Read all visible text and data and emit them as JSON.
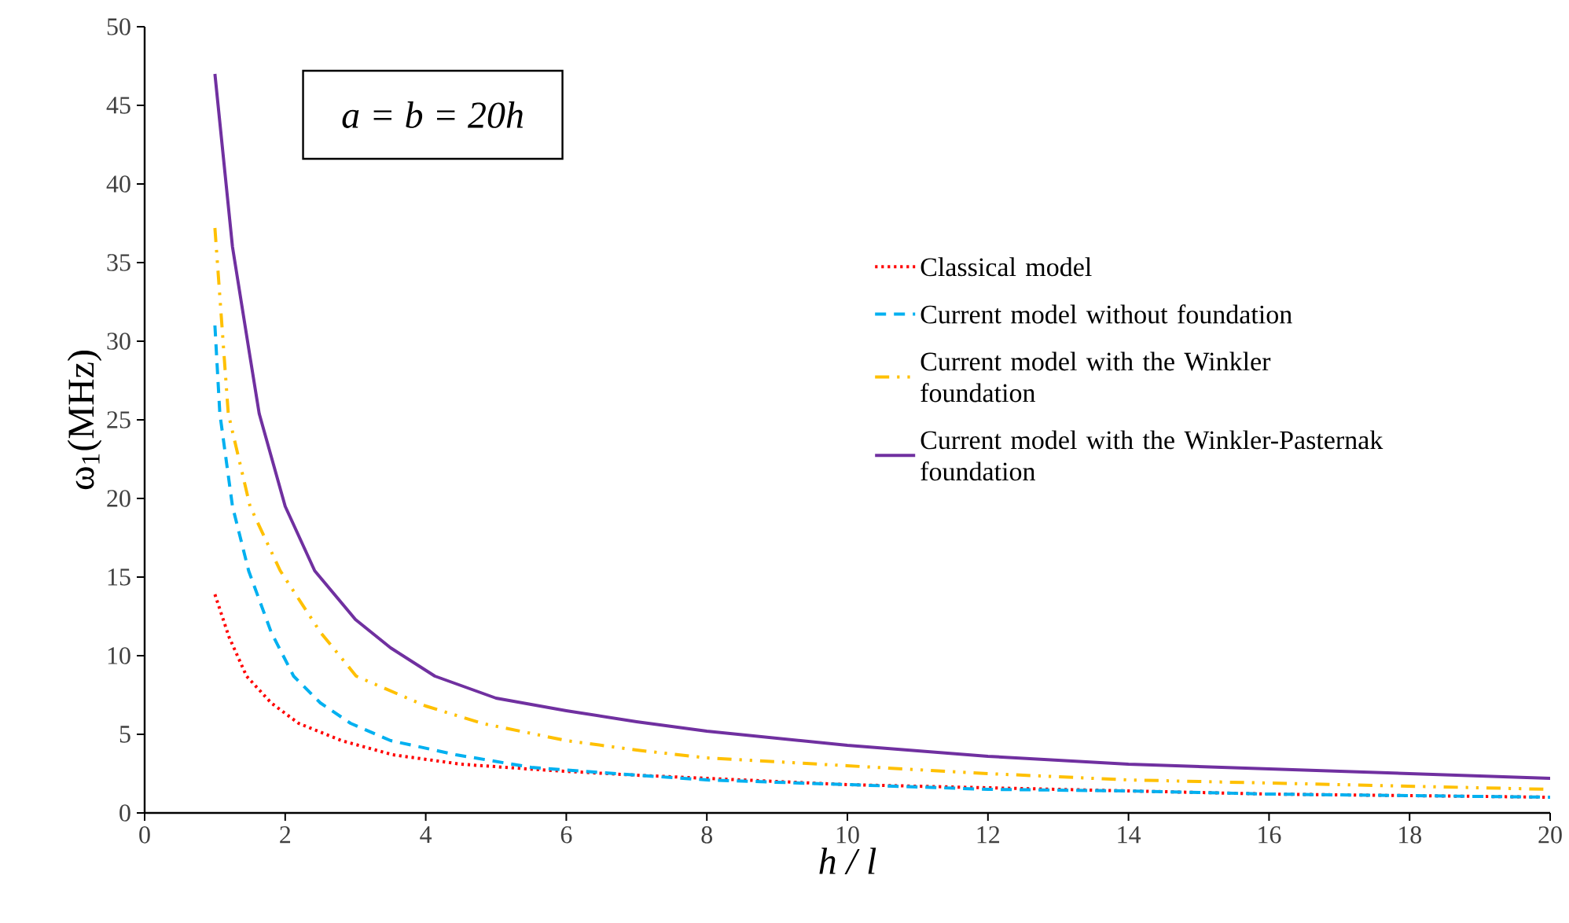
{
  "chart_data": {
    "type": "line",
    "xlabel": "h / l",
    "ylabel": "ω$_{1}$(MHz)",
    "annotations": [
      "a = b = 20h"
    ],
    "xlim": [
      0,
      20
    ],
    "ylim": [
      0,
      50
    ],
    "xticks": [
      0,
      2,
      4,
      6,
      8,
      10,
      12,
      14,
      16,
      18,
      20
    ],
    "yticks": [
      0,
      5,
      10,
      15,
      20,
      25,
      30,
      35,
      40,
      45,
      50
    ],
    "grid": false,
    "legend": "right",
    "marker": "none",
    "series": [
      {
        "name": "Classical model",
        "color": "#ff0000",
        "line_style": "dotted",
        "x": [
          1,
          1.2,
          1.45,
          1.8,
          2.19,
          2.8,
          3.53,
          4.5,
          5.77,
          7,
          8,
          10,
          12,
          14,
          16,
          18,
          20
        ],
        "values": [
          13.9,
          11.2,
          8.7,
          7.0,
          5.7,
          4.6,
          3.7,
          3.1,
          2.7,
          2.4,
          2.2,
          1.8,
          1.6,
          1.4,
          1.2,
          1.1,
          1.0
        ]
      },
      {
        "name": "Current model without foundation",
        "color": "#00b0f0",
        "line_style": "dashed",
        "x": [
          1,
          1.07,
          1.25,
          1.48,
          1.8,
          2.12,
          2.5,
          2.93,
          3.5,
          4.43,
          5.5,
          7,
          8,
          10,
          12,
          14,
          16,
          18,
          20
        ],
        "values": [
          31.0,
          25.4,
          19.5,
          15.4,
          11.5,
          8.7,
          7.0,
          5.7,
          4.6,
          3.7,
          2.9,
          2.4,
          2.1,
          1.8,
          1.5,
          1.4,
          1.2,
          1.1,
          1.0
        ]
      },
      {
        "name": "Current model with the Winkler foundation",
        "color": "#ffc000",
        "line_style": "dashdot",
        "x": [
          1,
          1.19,
          1.5,
          1.93,
          2.5,
          3.01,
          4,
          4.8,
          6,
          7,
          8,
          10,
          12,
          14,
          16,
          18,
          20
        ],
        "values": [
          37.2,
          25.4,
          19.5,
          15.4,
          11.5,
          8.7,
          6.8,
          5.7,
          4.6,
          4.0,
          3.5,
          3.0,
          2.5,
          2.1,
          1.9,
          1.7,
          1.5
        ]
      },
      {
        "name": "Current model with the Winkler-Pasternak foundation",
        "color": "#7030a0",
        "line_style": "solid",
        "x": [
          1,
          1.25,
          1.5,
          1.63,
          2,
          2.42,
          3,
          3.5,
          4.13,
          5,
          6,
          7,
          8,
          10,
          12,
          14,
          16,
          18,
          20
        ],
        "values": [
          47.0,
          36.0,
          29.0,
          25.4,
          19.5,
          15.4,
          12.3,
          10.5,
          8.7,
          7.3,
          6.5,
          5.8,
          5.2,
          4.3,
          3.6,
          3.1,
          2.8,
          2.5,
          2.2
        ]
      }
    ]
  }
}
